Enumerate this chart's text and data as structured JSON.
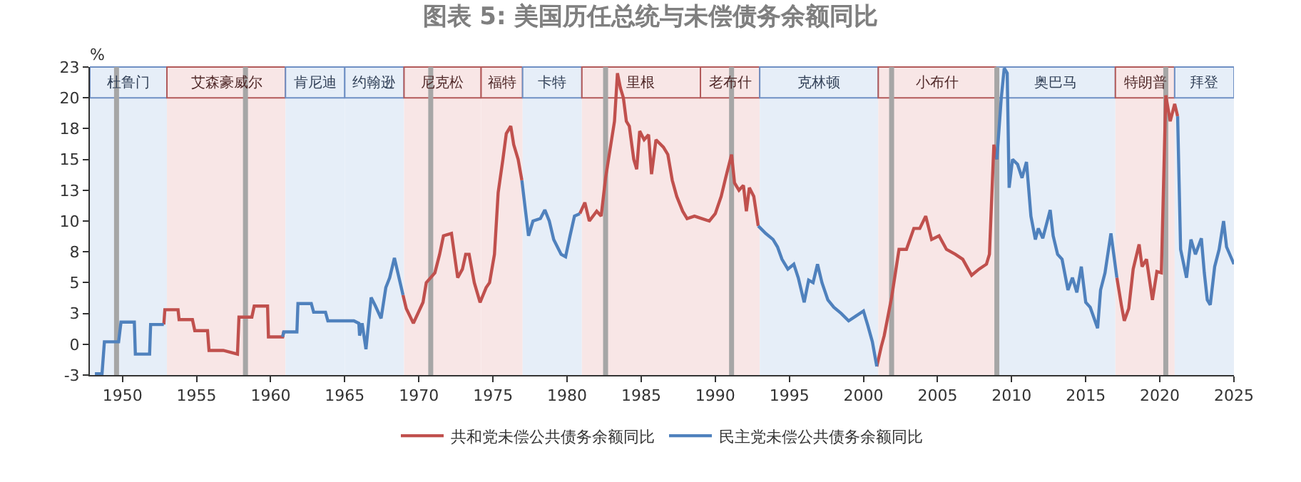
{
  "chart_data": {
    "type": "line",
    "title": "图表 5: 美国历任总统与未偿债务余额同比",
    "ylabel": "%",
    "xlim": [
      1947.8,
      2025
    ],
    "xticks": [
      1950,
      1955,
      1960,
      1965,
      1970,
      1975,
      1980,
      1985,
      1990,
      1995,
      2000,
      2005,
      2010,
      2015,
      2020,
      2025
    ],
    "ylim": [
      -2.5,
      22.5
    ],
    "yticks": [
      {
        "value": -2.5,
        "label": "-3"
      },
      0,
      {
        "value": 2.5,
        "label": "3"
      },
      5,
      {
        "value": 7.5,
        "label": "8"
      },
      10,
      {
        "value": 12.5,
        "label": "13"
      },
      15,
      {
        "value": 17.5,
        "label": "18"
      },
      20,
      {
        "value": 22.5,
        "label": "23"
      }
    ],
    "grid": false,
    "legend": "bottom",
    "marker": "none",
    "line_style": "solid",
    "series": [
      {
        "name": "共和党未偿公共债务余额同比",
        "color": "#c0504d",
        "x": [
          1952.79,
          1952.86,
          1953.75,
          1953.82,
          1954.72,
          1954.88,
          1955.74,
          1955.84,
          1956.8,
          1957.76,
          1957.86,
          1958.73,
          1958.89,
          1959.79,
          1959.85,
          1960.81,
          1960.88,
          1965,
          1968.93,
          1969.15,
          1969.63,
          1970.28,
          1970.5,
          1971.08,
          1971.4,
          1971.66,
          1972.2,
          1972.62,
          1972.94,
          1973.16,
          1973.39,
          1973.74,
          1974.13,
          1974.54,
          1974.77,
          1975.1,
          1975.35,
          1975.67,
          1975.9,
          1976.2,
          1976.4,
          1976.7,
          1976.95,
          1979,
          1980.86,
          1981.2,
          1981.5,
          1982.0,
          1982.3,
          1982.6,
          1982.9,
          1983.2,
          1983.4,
          1983.6,
          1983.8,
          1984.0,
          1984.2,
          1984.5,
          1984.7,
          1984.9,
          1985.2,
          1985.5,
          1985.7,
          1986.0,
          1986.5,
          1986.8,
          1987.1,
          1987.4,
          1987.8,
          1988.1,
          1988.6,
          1989.1,
          1989.6,
          1990.0,
          1990.4,
          1990.7,
          1991.1,
          1991.3,
          1991.6,
          1991.9,
          1992.1,
          1992.3,
          1992.6,
          1992.9,
          1997,
          2000.9,
          2001.2,
          2001.4,
          2001.9,
          2002.4,
          2002.9,
          2003.4,
          2003.8,
          2004.2,
          2004.6,
          2005.1,
          2005.6,
          2006.2,
          2006.7,
          2007.3,
          2007.8,
          2008.3,
          2008.5,
          2008.8,
          2009.0,
          2013,
          2017.1,
          2017.4,
          2017.6,
          2017.9,
          2018.2,
          2018.6,
          2018.8,
          2019.1,
          2019.5,
          2019.8,
          2020.1,
          2020.4,
          2020.7,
          2021.0,
          2021.2
        ],
        "values": [
          1.6,
          2.8,
          2.8,
          2.0,
          2.0,
          1.1,
          1.1,
          -0.5,
          -0.5,
          -0.8,
          2.2,
          2.2,
          3.1,
          3.1,
          0.6,
          0.6,
          1.0,
          null,
          4.0,
          2.9,
          1.7,
          3.4,
          5.0,
          5.8,
          7.3,
          8.8,
          9.0,
          5.4,
          6.1,
          7.3,
          7.3,
          5.0,
          3.4,
          4.6,
          5.0,
          7.3,
          12.3,
          15.0,
          17.1,
          17.7,
          16.2,
          15.0,
          13.3,
          null,
          10.6,
          11.5,
          10.0,
          10.8,
          10.4,
          13.5,
          15.8,
          18.1,
          22.0,
          20.8,
          20.0,
          18.1,
          17.7,
          15.0,
          14.2,
          17.3,
          16.6,
          17.0,
          13.8,
          16.6,
          16.0,
          15.4,
          13.3,
          12.0,
          10.8,
          10.2,
          10.4,
          10.2,
          10.0,
          10.6,
          12.0,
          13.5,
          15.4,
          13.1,
          12.5,
          12.9,
          10.8,
          12.7,
          12.0,
          9.6,
          null,
          -1.8,
          -0.2,
          0.7,
          3.8,
          7.7,
          7.7,
          9.4,
          9.4,
          10.4,
          8.5,
          8.8,
          7.7,
          7.3,
          6.9,
          5.6,
          6.1,
          6.5,
          7.3,
          16.2,
          15.0,
          null,
          5.4,
          3.2,
          1.9,
          2.9,
          6.1,
          8.1,
          6.3,
          6.9,
          3.6,
          5.9,
          5.8,
          20.2,
          18.1,
          19.5,
          18.5
        ]
      },
      {
        "name": "民主党未偿公共债务余额同比",
        "color": "#4f81bd",
        "x": [
          1948.14,
          1948.62,
          1948.78,
          1949.74,
          1949.9,
          1950.8,
          1950.87,
          1951.83,
          1951.9,
          1952.79,
          1956,
          1960.81,
          1960.88,
          1961.77,
          1961.84,
          1962.74,
          1962.9,
          1963.7,
          1963.86,
          1965.62,
          1965.95,
          1966.0,
          1966.17,
          1966.43,
          1966.78,
          1967.07,
          1967.45,
          1967.77,
          1968.03,
          1968.35,
          1968.58,
          1968.93,
          1972,
          1976.95,
          1977.2,
          1977.4,
          1977.7,
          1978.2,
          1978.5,
          1978.8,
          1979.1,
          1979.6,
          1979.9,
          1980.2,
          1980.5,
          1980.86,
          1987,
          1992.9,
          1993.4,
          1993.9,
          1994.2,
          1994.5,
          1994.9,
          1995.3,
          1995.6,
          1996.0,
          1996.3,
          1996.6,
          1996.9,
          1997.2,
          1997.6,
          1998.0,
          1998.5,
          1999.0,
          1999.5,
          2000.0,
          2000.3,
          2000.6,
          2000.9,
          2005,
          2009.0,
          2009.3,
          2009.5,
          2009.7,
          2009.83,
          2010.06,
          2010.4,
          2010.7,
          2011.0,
          2011.3,
          2011.6,
          2011.8,
          2012.1,
          2012.6,
          2012.8,
          2013.1,
          2013.4,
          2013.8,
          2014.1,
          2014.4,
          2014.7,
          2015.0,
          2015.3,
          2015.8,
          2016.0,
          2016.3,
          2016.7,
          2017.1,
          2019,
          2021.2,
          2021.4,
          2021.8,
          2022.1,
          2022.4,
          2022.8,
          2023.0,
          2023.2,
          2023.4,
          2023.7,
          2024.0,
          2024.3,
          2024.5,
          2025.0
        ],
        "values": [
          -2.4,
          -2.4,
          0.2,
          0.2,
          1.8,
          1.8,
          -0.8,
          -0.8,
          1.6,
          1.6,
          null,
          0.6,
          1.0,
          1.0,
          3.3,
          3.3,
          2.6,
          2.6,
          1.9,
          1.9,
          1.7,
          0.7,
          1.7,
          -0.4,
          3.8,
          3.1,
          2.1,
          4.6,
          5.4,
          7.0,
          5.8,
          4.0,
          null,
          13.3,
          10.8,
          8.8,
          10.0,
          10.2,
          10.9,
          10.0,
          8.5,
          7.3,
          7.1,
          8.8,
          10.4,
          10.6,
          null,
          9.6,
          9.0,
          8.5,
          7.9,
          6.9,
          6.1,
          6.5,
          5.4,
          3.4,
          5.2,
          5.0,
          6.5,
          5.0,
          3.6,
          3.0,
          2.5,
          1.9,
          2.3,
          2.7,
          1.5,
          0.2,
          -1.8,
          null,
          15.0,
          20.0,
          22.4,
          22.0,
          12.7,
          15.0,
          14.6,
          13.5,
          14.8,
          10.4,
          8.5,
          9.4,
          8.6,
          10.9,
          8.8,
          7.3,
          6.9,
          4.4,
          5.4,
          4.2,
          6.3,
          3.4,
          3.0,
          1.3,
          4.4,
          5.8,
          9.0,
          5.4,
          null,
          18.5,
          7.7,
          5.4,
          8.5,
          7.3,
          8.6,
          5.8,
          3.6,
          3.2,
          6.3,
          7.7,
          10.0,
          7.9,
          6.5
        ]
      }
    ],
    "bands": [
      {
        "axis": "x",
        "from": 1947.8,
        "to": 1953,
        "label": "杜鲁门",
        "color": "#e6eef8"
      },
      {
        "axis": "x",
        "from": 1953,
        "to": 1961,
        "label": "艾森豪威尔",
        "color": "#f8e6e6"
      },
      {
        "axis": "x",
        "from": 1961,
        "to": 1965,
        "label": "肯尼迪",
        "color": "#e6eef8"
      },
      {
        "axis": "x",
        "from": 1965,
        "to": 1969,
        "label": "约翰逊",
        "color": "#e6eef8"
      },
      {
        "axis": "x",
        "from": 1969,
        "to": 1974.2,
        "label": "尼克松",
        "color": "#f8e6e6"
      },
      {
        "axis": "x",
        "from": 1974.2,
        "to": 1977,
        "label": "福特",
        "color": "#f8e6e6"
      },
      {
        "axis": "x",
        "from": 1977,
        "to": 1981,
        "label": "卡特",
        "color": "#e6eef8"
      },
      {
        "axis": "x",
        "from": 1981,
        "to": 1989,
        "label": "里根",
        "color": "#f8e6e6"
      },
      {
        "axis": "x",
        "from": 1989,
        "to": 1993,
        "label": "老布什",
        "color": "#f8e6e6"
      },
      {
        "axis": "x",
        "from": 1993,
        "to": 2001,
        "label": "克林顿",
        "color": "#e6eef8"
      },
      {
        "axis": "x",
        "from": 2001,
        "to": 2009,
        "label": "小布什",
        "color": "#f8e6e6"
      },
      {
        "axis": "x",
        "from": 2009,
        "to": 2017,
        "label": "奥巴马",
        "color": "#e6eef8"
      },
      {
        "axis": "x",
        "from": 2017,
        "to": 2021,
        "label": "特朗普",
        "color": "#f8e6e6"
      },
      {
        "axis": "x",
        "from": 2021,
        "to": 2025,
        "label": "拜登",
        "color": "#e6eef8"
      }
    ],
    "ref_lines": [
      {
        "axis": "x",
        "value": 1949.6,
        "color": "#a6a6a6"
      },
      {
        "axis": "x",
        "value": 1958.3,
        "color": "#a6a6a6"
      },
      {
        "axis": "x",
        "value": 1970.8,
        "color": "#a6a6a6"
      },
      {
        "axis": "x",
        "value": 1982.6,
        "color": "#a6a6a6"
      },
      {
        "axis": "x",
        "value": 1991.1,
        "color": "#a6a6a6"
      },
      {
        "axis": "x",
        "value": 2001.9,
        "color": "#a6a6a6"
      },
      {
        "axis": "x",
        "value": 2009.0,
        "color": "#a6a6a6"
      },
      {
        "axis": "x",
        "value": 2020.4,
        "color": "#a6a6a6"
      }
    ]
  }
}
